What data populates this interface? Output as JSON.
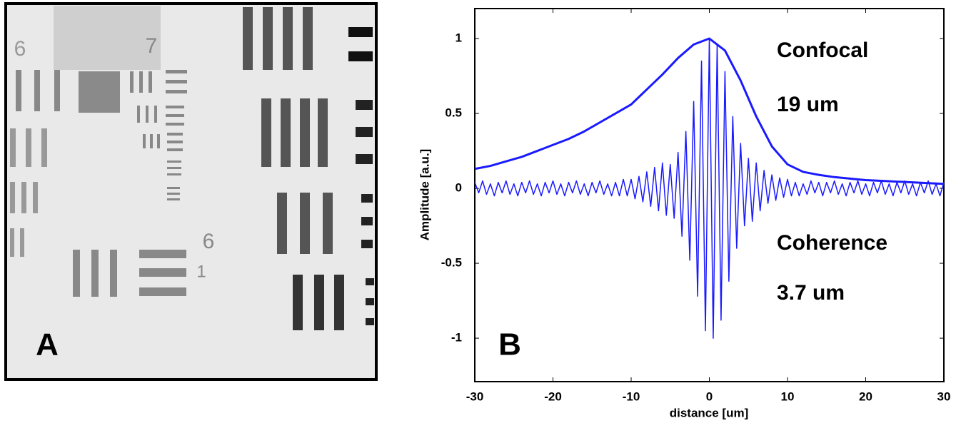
{
  "panel_a": {
    "label": "A",
    "target_labels": [
      "6",
      "7",
      "6",
      "1"
    ]
  },
  "chart_data": {
    "type": "line",
    "panel_label": "B",
    "xlabel": "distance [um]",
    "ylabel": "Amplitude [a.u.]",
    "xlim": [
      -30,
      30
    ],
    "xticks": [
      -30,
      -20,
      -10,
      0,
      10,
      20,
      30
    ],
    "ylim": [
      -1.29,
      1.2
    ],
    "yticks": [
      -1,
      -0.5,
      0,
      0.5,
      1
    ],
    "annotations": [
      "Confocal",
      "19 um",
      "Coherence",
      "3.7 um"
    ],
    "series": [
      {
        "color": "#1a1aff",
        "x": [
          -30,
          -28,
          -26,
          -24,
          -22,
          -20,
          -18,
          -16,
          -14,
          -12,
          -10,
          -8,
          -6,
          -4,
          -2,
          0,
          2,
          4,
          6,
          8,
          10,
          12,
          14,
          16,
          18,
          20,
          22,
          24,
          26,
          28,
          30
        ],
        "values": [
          0.13,
          0.15,
          0.18,
          0.21,
          0.25,
          0.29,
          0.33,
          0.38,
          0.44,
          0.5,
          0.56,
          0.66,
          0.76,
          0.87,
          0.96,
          1,
          0.92,
          0.72,
          0.48,
          0.28,
          0.16,
          0.11,
          0.09,
          0.075,
          0.065,
          0.055,
          0.05,
          0.045,
          0.04,
          0.035,
          0.03
        ]
      },
      {
        "color": "#1a1aff",
        "x": [
          -30,
          -29.5,
          -29,
          -28.5,
          -28,
          -27.5,
          -27,
          -26.5,
          -26,
          -25.5,
          -25,
          -24.5,
          -24,
          -23.5,
          -23,
          -22.5,
          -22,
          -21.5,
          -21,
          -20.5,
          -20,
          -19.5,
          -19,
          -18.5,
          -18,
          -17.5,
          -17,
          -16.5,
          -16,
          -15.5,
          -15,
          -14.5,
          -14,
          -13.5,
          -13,
          -12.5,
          -12,
          -11.5,
          -11,
          -10.5,
          -10,
          -9.5,
          -9,
          -8.5,
          -8,
          -7.5,
          -7,
          -6.5,
          -6,
          -5.5,
          -5,
          -4.5,
          -4,
          -3.5,
          -3,
          -2.5,
          -2,
          -1.5,
          -1,
          -0.5,
          0,
          0.5,
          1,
          1.5,
          2,
          2.5,
          3,
          3.5,
          4,
          4.5,
          5,
          5.5,
          6,
          6.5,
          7,
          7.5,
          8,
          8.5,
          9,
          9.5,
          10,
          10.5,
          11,
          11.5,
          12,
          12.5,
          13,
          13.5,
          14,
          14.5,
          15,
          15.5,
          16,
          16.5,
          17,
          17.5,
          18,
          18.5,
          19,
          19.5,
          20,
          20.5,
          21,
          21.5,
          22,
          22.5,
          23,
          23.5,
          24,
          24.5,
          25,
          25.5,
          26,
          26.5,
          27,
          27.5,
          28,
          28.5,
          29,
          29.5,
          30
        ],
        "values": [
          0.04,
          -0.03,
          0.05,
          -0.04,
          0.03,
          -0.05,
          0.04,
          -0.03,
          0.05,
          -0.04,
          0.03,
          -0.05,
          0.04,
          -0.03,
          0.05,
          -0.04,
          0.03,
          -0.05,
          0.04,
          -0.03,
          0.05,
          -0.04,
          0.03,
          -0.05,
          0.04,
          -0.03,
          0.05,
          -0.04,
          0.03,
          -0.05,
          0.04,
          -0.03,
          0.05,
          -0.04,
          0.03,
          -0.05,
          0.04,
          -0.05,
          0.06,
          -0.05,
          0.06,
          -0.07,
          0.08,
          -0.09,
          0.11,
          -0.12,
          0.14,
          -0.15,
          0.17,
          -0.18,
          0.16,
          -0.2,
          0.24,
          -0.32,
          0.38,
          -0.48,
          0.58,
          -0.72,
          0.85,
          -0.95,
          1,
          -1,
          0.96,
          -0.88,
          0.78,
          -0.62,
          0.48,
          -0.4,
          0.3,
          -0.25,
          0.2,
          -0.22,
          0.17,
          -0.15,
          0.12,
          -0.1,
          0.09,
          -0.08,
          0.07,
          -0.06,
          0.06,
          -0.05,
          0.04,
          -0.05,
          0.03,
          -0.04,
          0.05,
          -0.03,
          0.04,
          -0.05,
          0.04,
          -0.03,
          0.05,
          -0.04,
          0.03,
          -0.05,
          0.04,
          -0.03,
          0.05,
          -0.04,
          0.03,
          -0.05,
          0.04,
          -0.03,
          0.05,
          -0.04,
          0.03,
          -0.05,
          0.04,
          -0.03,
          0.05,
          -0.04,
          0.03,
          -0.05,
          0.04,
          -0.03,
          0.05,
          -0.04,
          0.03,
          -0.05,
          0.04
        ]
      }
    ]
  }
}
